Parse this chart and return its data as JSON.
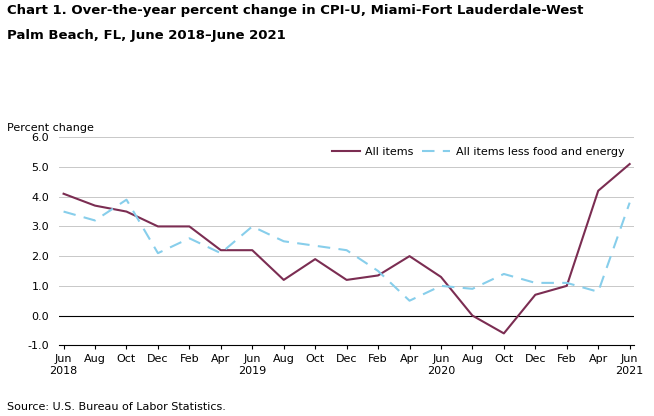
{
  "title_line1": "Chart 1. Over-the-year percent change in CPI-U, Miami-Fort Lauderdale-West",
  "title_line2": "Palm Beach, FL, June 2018–June 2021",
  "ylabel": "Percent change",
  "source": "Source: U.S. Bureau of Labor Statistics.",
  "ylim": [
    -1.0,
    6.0
  ],
  "yticks": [
    -1.0,
    0.0,
    1.0,
    2.0,
    3.0,
    4.0,
    5.0,
    6.0
  ],
  "x_tick_labels": [
    "Jun\n2018",
    "Aug",
    "Oct",
    "Dec",
    "Feb",
    "Apr",
    "Jun\n2019",
    "Aug",
    "Oct",
    "Dec",
    "Feb",
    "Apr",
    "Jun\n2020",
    "Aug",
    "Oct",
    "Dec",
    "Feb",
    "Apr",
    "Jun\n2021"
  ],
  "all_items_x": [
    0,
    2,
    4,
    6,
    8,
    10,
    12,
    14,
    16,
    18,
    20,
    22,
    24,
    26,
    28,
    30,
    32,
    34,
    36
  ],
  "all_items_y": [
    4.1,
    3.7,
    3.5,
    3.0,
    3.0,
    2.2,
    2.2,
    1.2,
    1.9,
    1.2,
    1.35,
    2.0,
    1.3,
    0.0,
    -0.6,
    0.7,
    1.0,
    4.2,
    5.1
  ],
  "all_items_less_x": [
    0,
    2,
    4,
    6,
    8,
    10,
    12,
    14,
    16,
    18,
    20,
    22,
    24,
    26,
    28,
    30,
    32,
    34,
    36
  ],
  "all_items_less_y": [
    3.5,
    3.2,
    3.9,
    2.1,
    2.6,
    2.1,
    3.0,
    2.5,
    2.35,
    2.2,
    1.5,
    0.5,
    1.0,
    0.9,
    1.4,
    1.1,
    1.1,
    0.8,
    3.8
  ],
  "all_items_color": "#7b2d52",
  "all_items_less_color": "#87ceeb",
  "legend_label_1": "All items",
  "legend_label_2": "All items less food and energy",
  "background_color": "#ffffff",
  "grid_color": "#c8c8c8"
}
